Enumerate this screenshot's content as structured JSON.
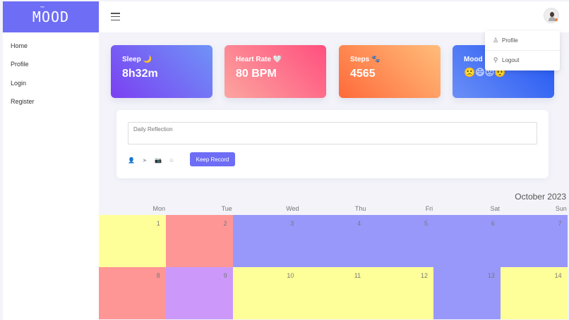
{
  "sidebar": {
    "logo": "MOOD",
    "logo_mark": "~",
    "items": [
      {
        "label": "Home"
      },
      {
        "label": "Profile"
      },
      {
        "label": "Login"
      },
      {
        "label": "Register"
      }
    ]
  },
  "cards": {
    "sleep": {
      "title": "Sleep 🌙",
      "value": "8h32m"
    },
    "heart": {
      "title": "Heart Rate 🤍",
      "value": "80 BPM"
    },
    "steps": {
      "title": "Steps 🐾",
      "value": "4565"
    },
    "mood": {
      "title": "Mood",
      "emojis": "🙁😄😡🤨"
    }
  },
  "dropdown": {
    "items": [
      {
        "icon": "user-icon",
        "glyph": "♙",
        "label": "Profile"
      },
      {
        "icon": "key-icon",
        "glyph": "⚲",
        "label": "Logout"
      }
    ]
  },
  "reflection": {
    "placeholder": "Daily Reflection",
    "tools": [
      {
        "icon": "user-icon",
        "glyph": "👤"
      },
      {
        "icon": "send-icon",
        "glyph": "➤"
      },
      {
        "icon": "camera-icon",
        "glyph": "📷"
      },
      {
        "icon": "smile-icon",
        "glyph": "☺"
      }
    ],
    "button": "Keep Record"
  },
  "calendar": {
    "month": "October 2023",
    "weekdays": [
      "Mon",
      "Tue",
      "Wed",
      "Thu",
      "Fri",
      "Sat",
      "Sun"
    ],
    "colors": {
      "yellow": "#ffff99",
      "red": "#ff9696",
      "blue": "#9898fa",
      "purple": "#cc99fa"
    },
    "days": [
      {
        "day": "1",
        "color": "#ffff99"
      },
      {
        "day": "2",
        "color": "#ff9696"
      },
      {
        "day": "3",
        "color": "#9898fa"
      },
      {
        "day": "4",
        "color": "#9898fa"
      },
      {
        "day": "5",
        "color": "#9898fa"
      },
      {
        "day": "6",
        "color": "#9898fa"
      },
      {
        "day": "7",
        "color": "#9898fa"
      },
      {
        "day": "8",
        "color": "#ff9696"
      },
      {
        "day": "9",
        "color": "#cc99fa"
      },
      {
        "day": "10",
        "color": "#ffff99"
      },
      {
        "day": "11",
        "color": "#ffff99"
      },
      {
        "day": "12",
        "color": "#ffff99"
      },
      {
        "day": "13",
        "color": "#9898fa"
      },
      {
        "day": "14",
        "color": "#ffff99"
      }
    ]
  }
}
